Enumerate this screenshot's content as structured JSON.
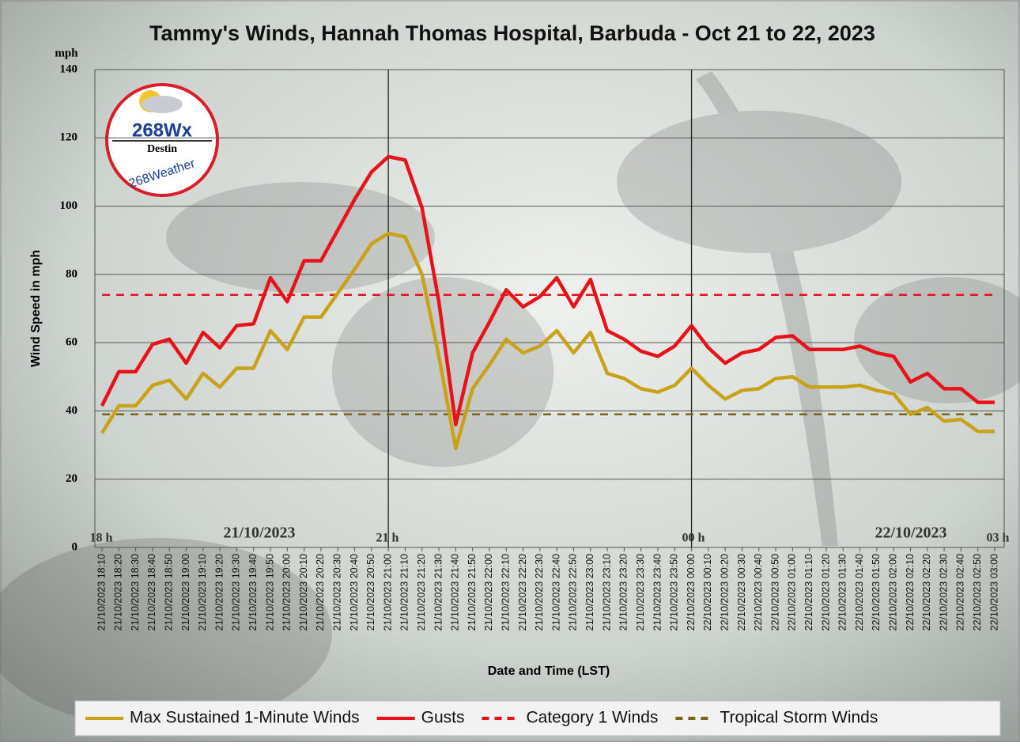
{
  "chart_data": {
    "type": "line",
    "title": "Tammy's Winds, Hannah Thomas Hospital, Barbuda - Oct 21 to 22, 2023",
    "y_unit": "mph",
    "y_label": "Wind Speed in mph",
    "x_label": "Date and Time (LST)",
    "ylim": [
      0,
      140
    ],
    "yticks": [
      0,
      20,
      40,
      60,
      80,
      100,
      120,
      140
    ],
    "grid": true,
    "hour_labels": [
      "18 h",
      "21 h",
      "00 h",
      "03 h"
    ],
    "date_labels": [
      "21/10/2023",
      "22/10/2023"
    ],
    "vlines": [
      "21/10/2023 21:00",
      "22/10/2023 00:00"
    ],
    "logo": {
      "title": "268Wx",
      "subtitle": "Destin",
      "ring": "268Weather"
    },
    "categories": [
      "21/10/2023 18:10",
      "21/10/2023 18:20",
      "21/10/2023 18:30",
      "21/10/2023 18:40",
      "21/10/2023 18:50",
      "21/10/2023 19:00",
      "21/10/2023 19:10",
      "21/10/2023 19:20",
      "21/10/2023 19:30",
      "21/10/2023 19:40",
      "21/10/2023 19:50",
      "21/10/2023 20:00",
      "21/10/2023 20:10",
      "21/10/2023 20:20",
      "21/10/2023 20:30",
      "21/10/2023 20:40",
      "21/10/2023 20:50",
      "21/10/2023 21:00",
      "21/10/2023 21:10",
      "21/10/2023 21:20",
      "21/10/2023 21:30",
      "21/10/2023 21:40",
      "21/10/2023 21:50",
      "21/10/2023 22:00",
      "21/10/2023 22:10",
      "21/10/2023 22:20",
      "21/10/2023 22:30",
      "21/10/2023 22:40",
      "21/10/2023 22:50",
      "21/10/2023 23:00",
      "21/10/2023 23:10",
      "21/10/2023 23:20",
      "21/10/2023 23:30",
      "21/10/2023 23:40",
      "21/10/2023 23:50",
      "22/10/2023 00:00",
      "22/10/2023 00:10",
      "22/10/2023 00:20",
      "22/10/2023 00:30",
      "22/10/2023 00:40",
      "22/10/2023 00:50",
      "22/10/2023 01:00",
      "22/10/2023 01:10",
      "22/10/2023 01:20",
      "22/10/2023 01:30",
      "22/10/2023 01:40",
      "22/10/2023 01:50",
      "22/10/2023 02:00",
      "22/10/2023 02:10",
      "22/10/2023 02:20",
      "22/10/2023 02:30",
      "22/10/2023 02:40",
      "22/10/2023 02:50",
      "22/10/2023 03:00"
    ],
    "series": [
      {
        "name": "Max Sustained 1-Minute Winds",
        "color": "#c9a21a",
        "values": [
          33.5,
          41.5,
          41.5,
          47.5,
          49,
          43.5,
          51,
          47,
          52.5,
          52.5,
          63.5,
          58,
          67.5,
          67.5,
          74.5,
          81.5,
          89,
          92,
          91,
          80,
          56,
          29,
          46.5,
          53.5,
          61,
          57,
          59,
          63.5,
          57,
          63,
          51,
          49.5,
          46.5,
          45.5,
          47.5,
          52.5,
          47.5,
          43.5,
          46,
          46.5,
          49.5,
          50,
          47,
          47,
          47,
          47.5,
          46,
          45,
          39,
          41,
          37,
          37.5,
          34,
          34
        ]
      },
      {
        "name": "Gusts",
        "color": "#e8121b",
        "values": [
          41.5,
          51.5,
          51.5,
          59.5,
          61,
          54,
          63,
          58.5,
          65,
          65.5,
          79,
          72,
          84,
          84,
          93,
          102,
          110,
          114.5,
          113.5,
          99.5,
          72,
          36,
          57,
          66,
          75.5,
          70.5,
          73.5,
          79,
          70.5,
          78.5,
          63.5,
          61,
          57.5,
          56,
          59,
          65,
          58.5,
          54,
          57,
          58,
          61.5,
          62,
          58,
          58,
          58,
          59,
          57,
          56,
          48.5,
          51,
          46.5,
          46.5,
          42.5,
          42.5
        ]
      }
    ],
    "reference_lines": [
      {
        "name": "Category 1 Winds",
        "color": "#e8121b",
        "value": 74
      },
      {
        "name": "Tropical Storm Winds",
        "color": "#7a6418",
        "value": 39
      }
    ]
  }
}
